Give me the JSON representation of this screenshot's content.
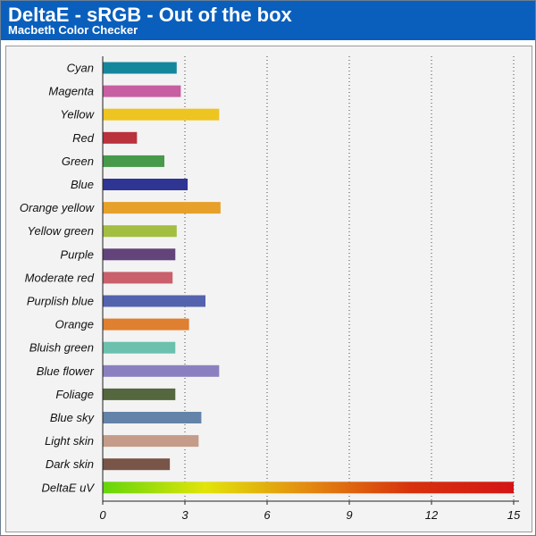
{
  "header": {
    "title": "DeltaE - sRGB - Out of the box",
    "subtitle": "Macbeth Color Checker"
  },
  "chart_data": {
    "type": "bar",
    "orientation": "horizontal",
    "title": "DeltaE - sRGB - Out of the box",
    "subtitle": "Macbeth Color Checker",
    "xlim": [
      0,
      15
    ],
    "xticks": [
      0,
      3,
      6,
      9,
      12,
      15
    ],
    "grid": "vertical dotted",
    "categories": [
      "Cyan",
      "Magenta",
      "Yellow",
      "Red",
      "Green",
      "Blue",
      "Orange yellow",
      "Yellow green",
      "Purple",
      "Moderate red",
      "Purplish blue",
      "Orange",
      "Bluish green",
      "Blue flower",
      "Foliage",
      "Blue sky",
      "Light skin",
      "Dark skin",
      "DeltaE uV"
    ],
    "values": [
      2.7,
      2.85,
      4.25,
      1.25,
      2.25,
      3.1,
      4.3,
      2.7,
      2.65,
      2.55,
      3.75,
      3.15,
      2.65,
      4.25,
      2.65,
      3.6,
      3.5,
      2.45,
      15
    ],
    "colors": [
      "#15879d",
      "#c75fa2",
      "#eec421",
      "#b9323c",
      "#469a4a",
      "#2f3593",
      "#e7a029",
      "#a3be40",
      "#62437a",
      "#c9606b",
      "#5463ad",
      "#df7f30",
      "#6bc1ae",
      "#8b80bf",
      "#55673e",
      "#6383a8",
      "#c49c89",
      "#785548",
      "gradient"
    ],
    "gradient_colors": [
      "#64d60a",
      "#e2e40a",
      "#e38a10",
      "#d7320d",
      "#d41515"
    ]
  }
}
